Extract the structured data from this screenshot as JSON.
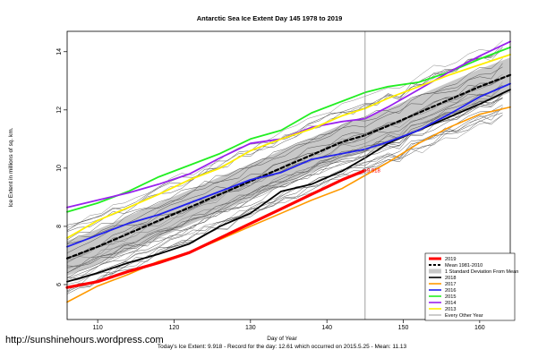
{
  "chart_data": {
    "type": "line",
    "title": "Antarctic Sea Ice Extent Day 145 1978 to 2019",
    "xlabel": "Day of Year",
    "ylabel": "Ice Extent in millions of sq. km.",
    "xlim": [
      106,
      164
    ],
    "ylim": [
      4.8,
      14.7
    ],
    "xticks": [
      110,
      120,
      130,
      140,
      150,
      160
    ],
    "yticks": [
      6,
      8,
      10,
      12,
      14
    ],
    "grid": false,
    "legend_position": "bottom-right",
    "marker_day": 145,
    "marker_label": "9.918",
    "footer": "Today's Ice Extent: 9.918  - Record for the day: 12.61 which occurred on 2015.5.25  - Mean: 11.13",
    "watermark": "http://sunshinehours.wordpress.com",
    "legend": [
      {
        "label": "2019",
        "color": "#ff0000",
        "style": "solid-thick"
      },
      {
        "label": "Mean 1981-2010",
        "color": "#000000",
        "style": "dashed"
      },
      {
        "label": "1 Standard Deviation From Mean",
        "color": "#bbbbbb",
        "style": "band"
      },
      {
        "label": "2018",
        "color": "#000000",
        "style": "solid"
      },
      {
        "label": "2017",
        "color": "#ff9900",
        "style": "solid"
      },
      {
        "label": "2016",
        "color": "#2222ee",
        "style": "solid"
      },
      {
        "label": "2015",
        "color": "#22ee22",
        "style": "solid"
      },
      {
        "label": "2014",
        "color": "#9922ee",
        "style": "solid"
      },
      {
        "label": "2013",
        "color": "#ffee00",
        "style": "solid"
      },
      {
        "label": "Every Other Year",
        "color": "#555555",
        "style": "thin"
      }
    ],
    "x": [
      106,
      110,
      114,
      118,
      122,
      126,
      130,
      134,
      138,
      142,
      145,
      148,
      152,
      156,
      160,
      164
    ],
    "series": [
      {
        "name": "2019",
        "color": "#ff0000",
        "width": 3.2,
        "x": [
          106,
          110,
          114,
          118,
          122,
          126,
          130,
          134,
          138,
          142,
          145
        ],
        "values": [
          5.9,
          6.1,
          6.45,
          6.75,
          7.1,
          7.6,
          8.1,
          8.6,
          9.1,
          9.6,
          9.92
        ]
      },
      {
        "name": "Mean 1981-2010",
        "color": "#000000",
        "width": 2.2,
        "dash": "4,3",
        "values": [
          6.9,
          7.3,
          7.75,
          8.2,
          8.65,
          9.1,
          9.55,
          10.0,
          10.45,
          10.9,
          11.13,
          11.45,
          11.9,
          12.35,
          12.8,
          13.2
        ]
      },
      {
        "name": "2018",
        "color": "#000000",
        "width": 1.8,
        "values": [
          6.1,
          6.4,
          6.75,
          7.05,
          7.4,
          8.0,
          8.45,
          9.2,
          9.45,
          9.9,
          10.35,
          10.85,
          11.3,
          11.75,
          12.2,
          12.7
        ]
      },
      {
        "name": "2017",
        "color": "#ff9900",
        "width": 1.6,
        "values": [
          5.4,
          5.95,
          6.35,
          6.8,
          7.1,
          7.55,
          8.0,
          8.45,
          8.9,
          9.3,
          9.75,
          10.2,
          10.85,
          11.4,
          11.85,
          12.1
        ]
      },
      {
        "name": "2016",
        "color": "#2222ee",
        "width": 1.8,
        "values": [
          7.3,
          7.7,
          8.1,
          8.4,
          8.8,
          9.2,
          9.6,
          9.85,
          10.3,
          10.5,
          10.65,
          10.9,
          11.3,
          11.85,
          12.45,
          12.9
        ]
      },
      {
        "name": "2015",
        "color": "#22ee22",
        "width": 1.8,
        "values": [
          8.5,
          8.8,
          9.2,
          9.7,
          10.1,
          10.5,
          11.0,
          11.3,
          11.9,
          12.3,
          12.6,
          12.8,
          12.95,
          13.3,
          13.75,
          14.15
        ]
      },
      {
        "name": "2014",
        "color": "#9922ee",
        "width": 1.8,
        "values": [
          8.65,
          8.9,
          9.15,
          9.45,
          9.8,
          10.35,
          10.85,
          11.0,
          11.4,
          11.6,
          11.7,
          12.1,
          12.7,
          13.3,
          13.85,
          14.35
        ]
      },
      {
        "name": "2013",
        "color": "#ffee00",
        "width": 1.8,
        "values": [
          7.6,
          8.2,
          8.65,
          9.1,
          9.6,
          10.0,
          10.6,
          11.0,
          11.35,
          11.8,
          12.05,
          12.4,
          12.8,
          13.2,
          13.55,
          13.9
        ]
      }
    ],
    "std_band": {
      "upper": [
        7.5,
        7.9,
        8.35,
        8.8,
        9.25,
        9.7,
        10.15,
        10.6,
        11.05,
        11.5,
        11.75,
        12.05,
        12.5,
        12.95,
        13.4,
        13.8
      ],
      "lower": [
        6.3,
        6.7,
        7.15,
        7.6,
        8.05,
        8.5,
        8.95,
        9.4,
        9.85,
        10.3,
        10.55,
        10.85,
        11.3,
        11.75,
        12.2,
        12.6
      ]
    }
  }
}
